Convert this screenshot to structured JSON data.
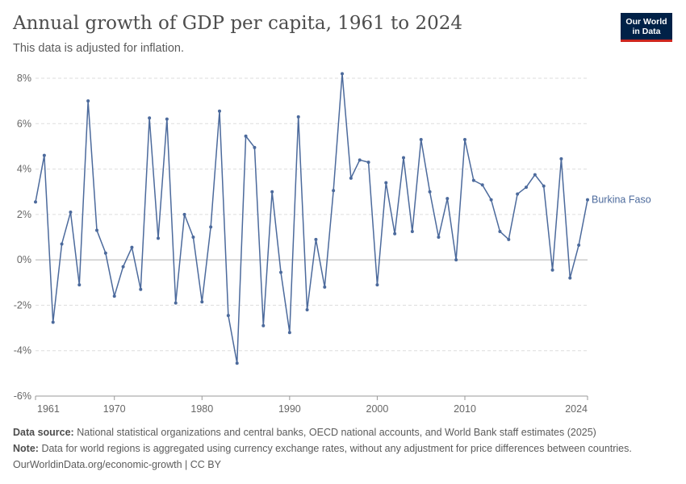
{
  "header": {
    "title": "Annual growth of GDP per capita, 1961 to 2024",
    "subtitle": "This data is adjusted for inflation.",
    "logo_line1": "Our World",
    "logo_line2": "in Data"
  },
  "footer": {
    "source_label": "Data source:",
    "source_text": "National statistical organizations and central banks, OECD national accounts, and World Bank staff estimates (2025)",
    "note_label": "Note:",
    "note_text": "Data for world regions is aggregated using currency exchange rates, without any adjustment for price differences between countries.",
    "url_text": "OurWorldinData.org/economic-growth | CC BY"
  },
  "colors": {
    "series": "#4c6a9c",
    "grid": "#dddddd",
    "zero_line": "#b0b0b0",
    "axis_text": "#666666"
  },
  "chart_data": {
    "type": "line",
    "title": "Annual growth of GDP per capita, 1961 to 2024",
    "subtitle": "This data is adjusted for inflation.",
    "xlabel": "",
    "ylabel": "",
    "xlim": [
      1961,
      2024
    ],
    "ylim": [
      -6,
      8
    ],
    "x_ticks": [
      1961,
      1970,
      1980,
      1990,
      2000,
      2010,
      2024
    ],
    "y_ticks": [
      -6,
      -4,
      -2,
      0,
      2,
      4,
      6,
      8
    ],
    "y_tick_labels": [
      "-6%",
      "-4%",
      "-2%",
      "0%",
      "2%",
      "4%",
      "6%",
      "8%"
    ],
    "grid": true,
    "series": [
      {
        "name": "Burkina Faso",
        "x": [
          1961,
          1962,
          1963,
          1964,
          1965,
          1966,
          1967,
          1968,
          1969,
          1970,
          1971,
          1972,
          1973,
          1974,
          1975,
          1976,
          1977,
          1978,
          1979,
          1980,
          1981,
          1982,
          1983,
          1984,
          1985,
          1986,
          1987,
          1988,
          1989,
          1990,
          1991,
          1992,
          1993,
          1994,
          1995,
          1996,
          1997,
          1998,
          1999,
          2000,
          2001,
          2002,
          2003,
          2004,
          2005,
          2006,
          2007,
          2008,
          2009,
          2010,
          2011,
          2012,
          2013,
          2014,
          2015,
          2016,
          2017,
          2018,
          2019,
          2020,
          2021,
          2022,
          2023,
          2024
        ],
        "values": [
          2.55,
          4.6,
          -2.75,
          0.7,
          2.1,
          -1.1,
          7.0,
          1.3,
          0.3,
          -1.6,
          -0.3,
          0.55,
          -1.3,
          6.25,
          0.95,
          6.2,
          -1.9,
          2.0,
          1.0,
          -1.85,
          1.45,
          6.55,
          -2.45,
          -4.55,
          5.45,
          4.95,
          -2.9,
          3.0,
          -0.55,
          -3.2,
          6.3,
          -2.2,
          0.9,
          -1.2,
          3.05,
          8.2,
          3.6,
          4.4,
          4.3,
          -1.1,
          3.4,
          1.15,
          4.5,
          1.25,
          5.3,
          3.0,
          1.0,
          2.7,
          0.0,
          5.3,
          3.5,
          3.3,
          2.65,
          1.25,
          0.9,
          2.9,
          3.2,
          3.75,
          3.25,
          -0.45,
          4.45,
          -0.8,
          0.65,
          2.65
        ]
      }
    ]
  }
}
